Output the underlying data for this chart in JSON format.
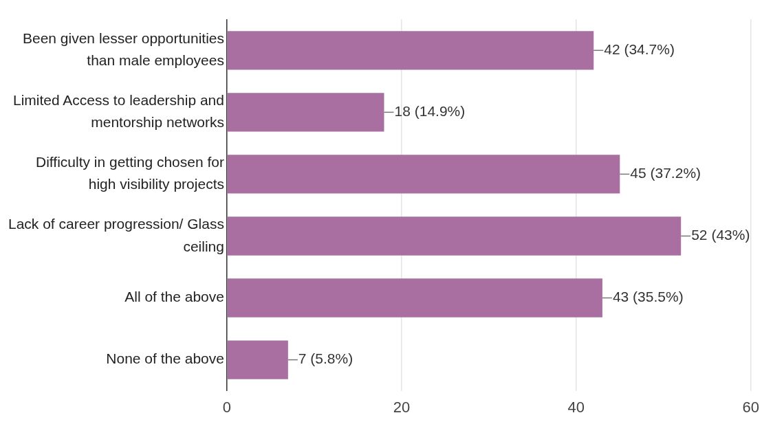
{
  "chart_data": {
    "type": "bar",
    "orientation": "horizontal",
    "categories": [
      "Been given lesser opportunities than male employees",
      "Limited Access to leadership and mentorship networks",
      "Difficulty in getting chosen for high visibility projects",
      "Lack of career progression/ Glass ceiling",
      "All of the above",
      "None of the above"
    ],
    "values": [
      42,
      18,
      45,
      52,
      43,
      7
    ],
    "value_labels": [
      "42 (34.7%)",
      "18 (14.9%)",
      "45 (37.2%)",
      "52 (43%)",
      "43 (35.5%)",
      "7 (5.8%)"
    ],
    "color": "#a86fa0",
    "xlim": [
      0,
      60
    ],
    "xticks": [
      0,
      20,
      40,
      60
    ],
    "grid": "x",
    "legend": false
  }
}
